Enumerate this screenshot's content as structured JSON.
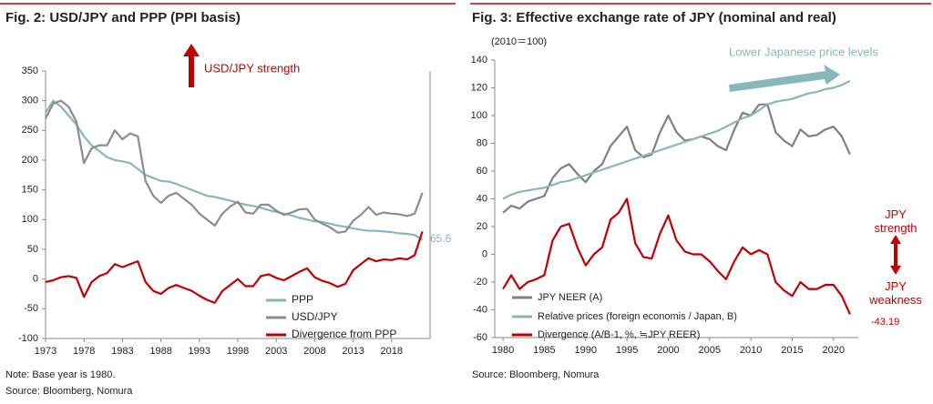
{
  "chart_data": [
    {
      "type": "line",
      "title": "Fig. 2: USD/JPY and PPP (PPI basis)",
      "notes": [
        "Note: Base year is 1980.",
        "Source: Bloomberg, Nomura"
      ],
      "annotations": [
        "USD/JPY strength",
        "65.6"
      ],
      "x": [
        1973,
        1974,
        1975,
        1976,
        1977,
        1978,
        1979,
        1980,
        1981,
        1982,
        1983,
        1984,
        1985,
        1986,
        1987,
        1988,
        1989,
        1990,
        1991,
        1992,
        1993,
        1994,
        1995,
        1996,
        1997,
        1998,
        1999,
        2000,
        2001,
        2002,
        2003,
        2004,
        2005,
        2006,
        2007,
        2008,
        2009,
        2010,
        2011,
        2012,
        2013,
        2014,
        2015,
        2016,
        2017,
        2018,
        2019,
        2020,
        2021,
        2022
      ],
      "xlim": [
        1973,
        2023
      ],
      "xticks": [
        1973,
        1978,
        1983,
        1988,
        1993,
        1998,
        2003,
        2008,
        2013,
        2018
      ],
      "ylim": [
        -100,
        350
      ],
      "yticks": [
        -100,
        -50,
        0,
        50,
        100,
        150,
        200,
        250,
        300,
        350
      ],
      "grid": false,
      "legend": "lower right",
      "series": [
        {
          "name": "PPP",
          "color": "#86b8ba",
          "values": [
            280,
            300,
            290,
            275,
            260,
            240,
            225,
            215,
            205,
            200,
            198,
            195,
            185,
            175,
            170,
            165,
            164,
            160,
            155,
            150,
            145,
            140,
            138,
            135,
            132,
            128,
            125,
            123,
            120,
            116,
            113,
            110,
            107,
            103,
            100,
            97,
            96,
            93,
            90,
            88,
            85,
            83,
            81,
            81,
            80,
            79,
            77,
            76,
            74,
            65.6
          ]
        },
        {
          "name": "USD/JPY",
          "color": "#8c8c8c",
          "values": [
            270,
            295,
            300,
            290,
            265,
            195,
            220,
            225,
            225,
            250,
            235,
            245,
            240,
            165,
            140,
            128,
            140,
            145,
            135,
            125,
            110,
            100,
            90,
            110,
            122,
            130,
            112,
            110,
            125,
            125,
            115,
            108,
            112,
            117,
            118,
            100,
            93,
            87,
            78,
            80,
            98,
            108,
            121,
            108,
            112,
            110,
            109,
            106,
            110,
            145
          ]
        },
        {
          "name": "Divergence from PPP",
          "color": "#c00000",
          "values": [
            -5,
            -2,
            3,
            5,
            2,
            -30,
            -5,
            5,
            10,
            25,
            20,
            25,
            30,
            -5,
            -20,
            -25,
            -15,
            -10,
            -15,
            -20,
            -28,
            -35,
            -40,
            -20,
            -10,
            0,
            -12,
            -12,
            5,
            8,
            2,
            -2,
            5,
            12,
            18,
            3,
            -3,
            -7,
            -13,
            -8,
            15,
            25,
            35,
            30,
            33,
            32,
            35,
            33,
            40,
            80
          ]
        }
      ]
    },
    {
      "type": "line",
      "title": "Fig. 3: Effective exchange rate of JPY (nominal and real)",
      "subtitle": "(2010＝100)",
      "notes": [
        "Source: Bloomberg, Nomura"
      ],
      "annotations": [
        "Lower Japanese price levels",
        "JPY strength",
        "JPY weakness",
        "-43.19"
      ],
      "x": [
        1980,
        1981,
        1982,
        1983,
        1984,
        1985,
        1986,
        1987,
        1988,
        1989,
        1990,
        1991,
        1992,
        1993,
        1994,
        1995,
        1996,
        1997,
        1998,
        1999,
        2000,
        2001,
        2002,
        2003,
        2004,
        2005,
        2006,
        2007,
        2008,
        2009,
        2010,
        2011,
        2012,
        2013,
        2014,
        2015,
        2016,
        2017,
        2018,
        2019,
        2020,
        2021,
        2022
      ],
      "xlim": [
        1979,
        2023
      ],
      "xticks": [
        1980,
        1985,
        1990,
        1995,
        2000,
        2005,
        2010,
        2015,
        2020
      ],
      "ylim": [
        -60,
        140
      ],
      "yticks": [
        -60,
        -40,
        -20,
        0,
        20,
        40,
        60,
        80,
        100,
        120,
        140
      ],
      "grid": false,
      "legend": "lower left",
      "series": [
        {
          "name": "JPY NEER (A)",
          "color": "#7f7f7f",
          "values": [
            30,
            35,
            33,
            38,
            40,
            42,
            55,
            62,
            65,
            58,
            52,
            60,
            65,
            78,
            85,
            92,
            75,
            70,
            72,
            88,
            100,
            88,
            82,
            83,
            85,
            83,
            78,
            75,
            90,
            102,
            100,
            108,
            108,
            88,
            82,
            78,
            90,
            85,
            86,
            90,
            92,
            85,
            72
          ]
        },
        {
          "name": "Relative prices (foreign economis / Japan, B)",
          "color": "#86b8ba",
          "values": [
            40,
            43,
            45,
            46,
            47,
            48,
            50,
            52,
            53,
            55,
            57,
            59,
            61,
            63,
            65,
            67,
            69,
            71,
            73,
            75,
            77,
            79,
            81,
            83,
            85,
            87,
            89,
            92,
            95,
            98,
            100,
            104,
            108,
            110,
            111,
            112,
            114,
            116,
            117,
            119,
            120,
            122,
            125
          ]
        },
        {
          "name": "Divergence (A/B-1, %, ≒JPY REER)",
          "color": "#c00000",
          "values": [
            -25,
            -15,
            -25,
            -20,
            -18,
            -15,
            10,
            20,
            22,
            5,
            -8,
            0,
            5,
            25,
            30,
            40,
            8,
            -2,
            -3,
            15,
            28,
            10,
            2,
            0,
            0,
            -5,
            -12,
            -18,
            -5,
            5,
            0,
            3,
            0,
            -20,
            -26,
            -30,
            -20,
            -25,
            -25,
            -22,
            -22,
            -30,
            -43.19
          ]
        }
      ]
    }
  ]
}
